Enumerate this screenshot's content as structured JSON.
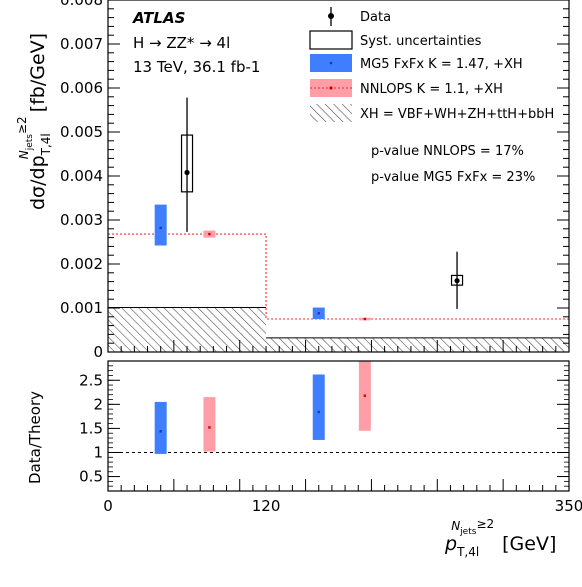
{
  "chart_data": [
    {
      "type": "bar",
      "panel": "main",
      "ylabel": "dσ/dp",
      "ylabel_sub": "T,4l",
      "ylabel_sup": "N",
      "ylabel_sup_sub": "jets",
      "ylabel_sup_tail": "≥2",
      "ylabel_unit": "[fb/GeV]",
      "ylim": [
        0,
        0.008
      ],
      "xlim": [
        0,
        350
      ],
      "yticks": [
        "0",
        "0.001",
        "0.002",
        "0.003",
        "0.004",
        "0.005",
        "0.006",
        "0.007",
        "0.008"
      ],
      "bins": [
        [
          0,
          120
        ],
        [
          120,
          350
        ]
      ],
      "atlas_label": "ATLAS",
      "process": "H → ZZ* → 4l",
      "energy": "13 TeV, 36.1 fb-1",
      "legend": {
        "data": "Data",
        "syst": "Syst. uncertainties",
        "mg5": "MG5 FxFx K = 1.47, +XH",
        "nnlops": "NNLOPS K = 1.1, +XH",
        "xh": "XH = VBF+WH+ZH+ttH+bbH"
      },
      "pvalues": [
        "p-value NNLOPS = 17%",
        "p-value MG5 FxFx = 23%"
      ],
      "data_points": [
        {
          "x": 60,
          "y": 0.00408,
          "stat_low": 0.00273,
          "stat_high": 0.00578,
          "syst_low": 0.00364,
          "syst_high": 0.00493
        },
        {
          "x": 265,
          "y": 0.00162,
          "stat_low": 0.00098,
          "stat_high": 0.00228,
          "syst_low": 0.00152,
          "syst_high": 0.00174
        }
      ],
      "mg5": [
        {
          "x": 40,
          "y": 0.00282,
          "low": 0.00242,
          "high": 0.00335
        },
        {
          "x": 160,
          "y": 0.00088,
          "low": 0.00075,
          "high": 0.00101
        }
      ],
      "nnlops": [
        {
          "x": 77,
          "y": 0.00268,
          "low": 0.0026,
          "high": 0.00276
        },
        {
          "x": 195,
          "y": 0.00075,
          "low": 0.00072,
          "high": 0.00078
        }
      ],
      "nnlops_line": [
        0.00268,
        0.00075
      ],
      "xh": [
        0.00101,
        0.00032
      ],
      "colors": {
        "mg5": "#3f7fff",
        "nnlops": "#ff9ea6",
        "nnlops_line": "#ff2b2b",
        "data": "#000000"
      }
    },
    {
      "type": "bar",
      "panel": "ratio",
      "ylabel": "Data/Theory",
      "ylim": [
        0.2,
        2.9
      ],
      "yticks": [
        "0.5",
        "1",
        "1.5",
        "2",
        "2.5"
      ],
      "xticks": [
        "0",
        "120",
        "350"
      ],
      "xlabel": "p",
      "xlabel_sub": "T,4l",
      "xlabel_sup": "N",
      "xlabel_sup_sub": "jets",
      "xlabel_sup_tail": "≥2",
      "xlabel_unit": "[GeV]",
      "reference": 1,
      "mg5": [
        {
          "x": 40,
          "y": 1.44,
          "low": 0.97,
          "high": 2.05
        },
        {
          "x": 160,
          "y": 1.84,
          "low": 1.26,
          "high": 2.62
        }
      ],
      "nnlops": [
        {
          "x": 77,
          "y": 1.52,
          "low": 1.02,
          "high": 2.15
        },
        {
          "x": 195,
          "y": 2.18,
          "low": 1.45,
          "high": 2.9
        }
      ]
    }
  ]
}
